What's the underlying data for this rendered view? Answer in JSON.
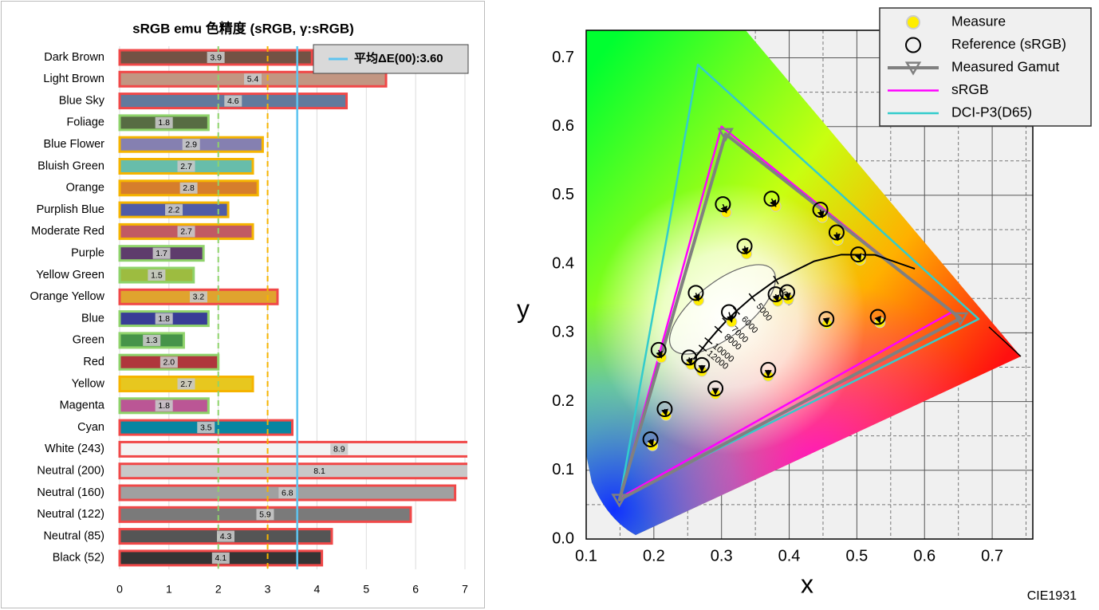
{
  "chart_data": [
    {
      "type": "bar",
      "orientation": "horizontal",
      "title": "sRGB emu 色精度 (sRGB, γ:sRGB)",
      "categories": [
        "Dark Brown",
        "Light Brown",
        "Blue Sky",
        "Foliage",
        "Blue Flower",
        "Bluish Green",
        "Orange",
        "Purplish Blue",
        "Moderate Red",
        "Purple",
        "Yellow Green",
        "Orange Yellow",
        "Blue",
        "Green",
        "Red",
        "Yellow",
        "Magenta",
        "Cyan",
        "White (243)",
        "Neutral (200)",
        "Neutral (160)",
        "Neutral (122)",
        "Neutral (85)",
        "Black (52)"
      ],
      "values": [
        3.9,
        5.4,
        4.6,
        1.8,
        2.9,
        2.7,
        2.8,
        2.2,
        2.7,
        1.7,
        1.5,
        3.2,
        1.8,
        1.3,
        2.0,
        2.7,
        1.8,
        3.5,
        8.9,
        8.1,
        6.8,
        5.9,
        4.3,
        4.1
      ],
      "value_labels": [
        "3.9",
        "5.4",
        "4.6",
        "1.8",
        "2.9",
        "2.7",
        "2.8",
        "2.2",
        "2.7",
        "1.7",
        "1.5",
        "3.2",
        "1.8",
        "1.3",
        "2.0",
        "2.7",
        "1.8",
        "3.5",
        "8.9",
        "8.1",
        "6.8",
        "5.9",
        "4.3",
        "4.1"
      ],
      "colors": [
        "#735244",
        "#c29682",
        "#627a9d",
        "#576c43",
        "#8580b1",
        "#67bdaa",
        "#d67e2c",
        "#505ba6",
        "#c15a63",
        "#5e3c6c",
        "#9dbc40",
        "#e0a32e",
        "#383d96",
        "#469449",
        "#af363c",
        "#e7c71f",
        "#bb5695",
        "#0885a1",
        "#f3f3f3",
        "#c8c8c8",
        "#a0a0a0",
        "#7a7a7a",
        "#555555",
        "#343434"
      ],
      "border_colors": [
        "#f04848",
        "#f04848",
        "#f04848",
        "#8fd36b",
        "#f5b400",
        "#f5b400",
        "#f5b400",
        "#f5b400",
        "#f5b400",
        "#8fd36b",
        "#8fd36b",
        "#f04848",
        "#8fd36b",
        "#8fd36b",
        "#8fd36b",
        "#f5b400",
        "#8fd36b",
        "#f04848",
        "#f04848",
        "#f04848",
        "#f04848",
        "#f04848",
        "#f04848",
        "#f04848"
      ],
      "xlim": [
        0,
        7
      ],
      "xticks": [
        0,
        1,
        2,
        3,
        4,
        5,
        6,
        7
      ],
      "grid": true,
      "reference_lines": [
        {
          "value": 2,
          "color": "#8fd36b"
        },
        {
          "value": 3,
          "color": "#f5b400"
        }
      ],
      "average": {
        "value": 3.6,
        "label": "平均ΔE(00):3.60",
        "color": "#5ec4f0"
      }
    },
    {
      "type": "scatter",
      "xlabel": "x",
      "ylabel": "y",
      "note": "CIE1931",
      "xlim": [
        0.1,
        0.76
      ],
      "ylim": [
        0,
        0.74
      ],
      "xticks": [
        0.1,
        0.2,
        0.3,
        0.4,
        0.5,
        0.6,
        0.7
      ],
      "yticks": [
        {
          "value": 0,
          "label": "0.0"
        },
        0.1,
        0.2,
        0.3,
        0.4,
        0.5,
        0.6,
        0.7
      ],
      "xminor": [
        0.15,
        0.25,
        0.35,
        0.45,
        0.55,
        0.65,
        0.75
      ],
      "yminor": [
        0.05,
        0.15,
        0.25,
        0.35,
        0.45,
        0.55,
        0.65
      ],
      "grid": true,
      "series": [
        {
          "name": "Measure",
          "marker": "dot",
          "color": "#ffee00",
          "x": [
            0.307,
            0.38,
            0.449,
            0.472,
            0.505,
            0.337,
            0.266,
            0.383,
            0.399,
            0.315,
            0.456,
            0.534,
            0.211,
            0.255,
            0.271,
            0.369,
            0.291,
            0.218,
            0.198
          ],
          "y": [
            0.475,
            0.484,
            0.468,
            0.435,
            0.406,
            0.415,
            0.347,
            0.346,
            0.349,
            0.316,
            0.313,
            0.315,
            0.264,
            0.254,
            0.244,
            0.237,
            0.211,
            0.18,
            0.136
          ]
        },
        {
          "name": "Reference (sRGB)",
          "marker": "circle",
          "color": "#000000",
          "x": [
            0.302,
            0.374,
            0.446,
            0.47,
            0.502,
            0.334,
            0.262,
            0.38,
            0.397,
            0.311,
            0.455,
            0.531,
            0.207,
            0.252,
            0.271,
            0.369,
            0.291,
            0.216,
            0.195
          ],
          "y": [
            0.487,
            0.495,
            0.479,
            0.446,
            0.414,
            0.426,
            0.358,
            0.356,
            0.359,
            0.33,
            0.32,
            0.323,
            0.275,
            0.264,
            0.253,
            0.246,
            0.219,
            0.189,
            0.145
          ]
        },
        {
          "name": "Measured Gamut",
          "marker": "triangle",
          "color": "#808080",
          "x": [
            0.149,
            0.306,
            0.653
          ],
          "y": [
            0.057,
            0.589,
            0.321
          ]
        },
        {
          "name": "sRGB",
          "marker": "line",
          "color": "#ff00ff",
          "x": [
            0.64,
            0.3,
            0.15
          ],
          "y": [
            0.33,
            0.6,
            0.06
          ]
        },
        {
          "name": "DCI-P3(D65)",
          "marker": "line",
          "color": "#33cccc",
          "x": [
            0.68,
            0.265,
            0.15
          ],
          "y": [
            0.32,
            0.69,
            0.06
          ]
        }
      ],
      "planckian": {
        "color": "#000000",
        "x": [
          0.5857,
          0.5267,
          0.477,
          0.4369,
          0.3805,
          0.3451,
          0.3221,
          0.3064,
          0.2952,
          0.2807,
          0.2722,
          0.2565
        ],
        "y": [
          0.3931,
          0.4133,
          0.4137,
          0.4041,
          0.3768,
          0.3516,
          0.3318,
          0.3166,
          0.3048,
          0.2883,
          0.2776,
          0.259
        ],
        "cct_labels": [
          null,
          null,
          null,
          null,
          4000,
          5000,
          6000,
          7000,
          8000,
          10000,
          12000,
          null
        ]
      }
    }
  ]
}
